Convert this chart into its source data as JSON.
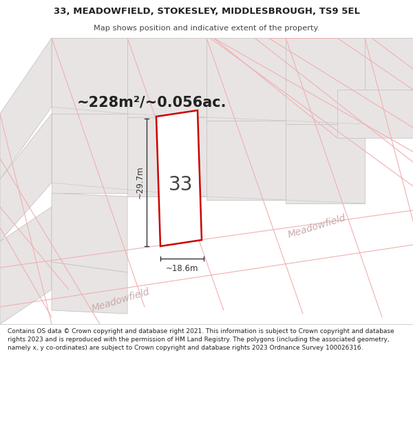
{
  "title_line1": "33, MEADOWFIELD, STOKESLEY, MIDDLESBROUGH, TS9 5EL",
  "title_line2": "Map shows position and indicative extent of the property.",
  "area_text": "~228m²/~0.056ac.",
  "label_number": "33",
  "label_width": "~18.6m",
  "label_height": "~29.7m",
  "road_label_bottom": "Meadowfield",
  "road_label_right": "Meadowfield",
  "footer_text": "Contains OS data © Crown copyright and database right 2021. This information is subject to Crown copyright and database rights 2023 and is reproduced with the permission of HM Land Registry. The polygons (including the associated geometry, namely x, y co-ordinates) are subject to Crown copyright and database rights 2023 Ordnance Survey 100026316.",
  "map_bg": "#f5f3f3",
  "plot_outline_color": "#cc0000",
  "road_line_color": "#f0b0b0",
  "road_line_color2": "#c8c8c8",
  "building_fill": "#e8e4e4",
  "building_edge": "#c8c4c4",
  "footer_bg": "#ffffff",
  "title_bg": "#ffffff",
  "text_color": "#222222",
  "dim_color": "#333333",
  "road_text_color": "#c8aaaa"
}
